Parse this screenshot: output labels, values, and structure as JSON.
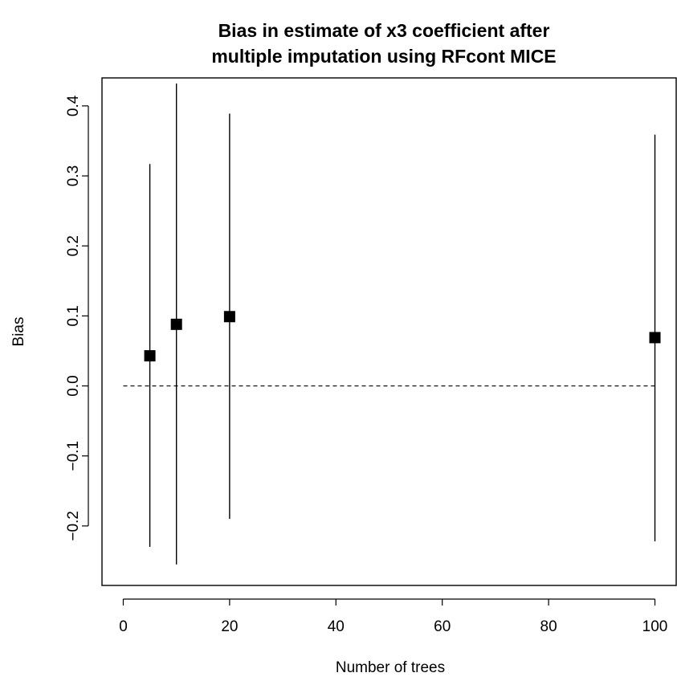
{
  "chart_data": {
    "type": "scatter",
    "title_lines": [
      "Bias in estimate of x3 coefficient after",
      "multiple imputation using RFcont MICE"
    ],
    "xlabel": "Number of trees",
    "ylabel": "Bias",
    "xlim": [
      -4,
      104
    ],
    "ylim": [
      -0.285,
      0.44
    ],
    "x_ticks": [
      0,
      20,
      40,
      60,
      80,
      100
    ],
    "x_tick_labels": [
      "0",
      "20",
      "40",
      "60",
      "80",
      "100"
    ],
    "y_ticks": [
      -0.2,
      -0.1,
      0.0,
      0.1,
      0.2,
      0.3,
      0.4
    ],
    "y_tick_labels": [
      "−0.2",
      "−0.1",
      "0.0",
      "0.1",
      "0.2",
      "0.3",
      "0.4"
    ],
    "points": [
      {
        "x": 5,
        "y": 0.043,
        "lower": -0.23,
        "upper": 0.317
      },
      {
        "x": 10,
        "y": 0.088,
        "lower": -0.255,
        "upper": 0.432
      },
      {
        "x": 20,
        "y": 0.099,
        "lower": -0.19,
        "upper": 0.389
      },
      {
        "x": 100,
        "y": 0.069,
        "lower": -0.222,
        "upper": 0.359
      }
    ],
    "reference_line": {
      "y": 0,
      "x_from": 0,
      "x_to": 100,
      "style": "dashed"
    },
    "marker": "filled-square",
    "grid": false,
    "legend": "none"
  }
}
